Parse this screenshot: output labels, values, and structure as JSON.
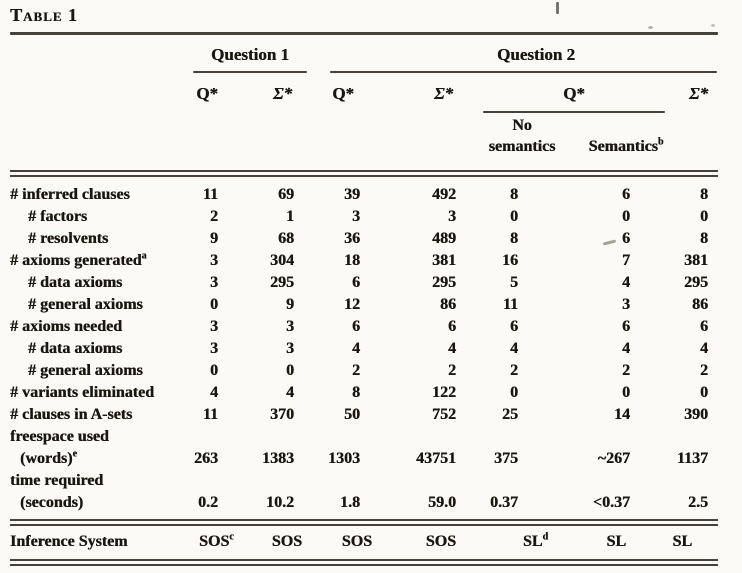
{
  "page": {
    "title": "Table 1"
  },
  "table": {
    "groups": {
      "question1": "Question 1",
      "question2": "Question 2"
    },
    "columns": {
      "q1_q": "Q*",
      "q1_sigma": "Σ*",
      "q2_q": "Q*",
      "q2_sigma": "Σ*",
      "q2_q_group": "Q*",
      "no_semantics_line1": "No",
      "no_semantics_line2": "semantics",
      "semantics": "Semantics",
      "semantics_sup": "b",
      "q2_sigma2": "Σ*"
    },
    "rows": [
      {
        "label": "# inferred clauses",
        "indent": 0,
        "values": [
          "11",
          "69",
          "39",
          "492",
          "8",
          "6",
          "8"
        ]
      },
      {
        "label": "# factors",
        "indent": 1,
        "values": [
          "2",
          "1",
          "3",
          "3",
          "0",
          "0",
          "0"
        ]
      },
      {
        "label": "# resolvents",
        "indent": 1,
        "values": [
          "9",
          "68",
          "36",
          "489",
          "8",
          "6",
          "8"
        ]
      },
      {
        "label": "# axioms generated",
        "sup": "a",
        "indent": 0,
        "values": [
          "3",
          "304",
          "18",
          "381",
          "16",
          "7",
          "381"
        ]
      },
      {
        "label": "# data axioms",
        "indent": 1,
        "values": [
          "3",
          "295",
          "6",
          "295",
          "5",
          "4",
          "295"
        ]
      },
      {
        "label": "# general axioms",
        "indent": 1,
        "values": [
          "0",
          "9",
          "12",
          "86",
          "11",
          "3",
          "86"
        ]
      },
      {
        "label": "# axioms needed",
        "indent": 0,
        "values": [
          "3",
          "3",
          "6",
          "6",
          "6",
          "6",
          "6"
        ]
      },
      {
        "label": "# data axioms",
        "indent": 1,
        "values": [
          "3",
          "3",
          "4",
          "4",
          "4",
          "4",
          "4"
        ]
      },
      {
        "label": "# general axioms",
        "indent": 1,
        "values": [
          "0",
          "0",
          "2",
          "2",
          "2",
          "2",
          "2"
        ]
      },
      {
        "label": "# variants eliminated",
        "indent": 0,
        "values": [
          "4",
          "4",
          "8",
          "122",
          "0",
          "0",
          "0"
        ]
      },
      {
        "label": "# clauses in A-sets",
        "indent": 0,
        "values": [
          "11",
          "370",
          "50",
          "752",
          "25",
          "14",
          "390"
        ]
      },
      {
        "label": "freespace used",
        "indent": 0,
        "values": [
          "",
          "",
          "",
          "",
          "",
          "",
          ""
        ]
      },
      {
        "label": "(words)",
        "sup": "e",
        "indent": 2,
        "values": [
          "263",
          "1383",
          "1303",
          "43751",
          "375",
          "~267",
          "1137"
        ]
      },
      {
        "label": "time required",
        "indent": 0,
        "values": [
          "",
          "",
          "",
          "",
          "",
          "",
          ""
        ]
      },
      {
        "label": "(seconds)",
        "indent": 2,
        "values": [
          "0.2",
          "10.2",
          "1.8",
          "59.0",
          "0.37",
          "<0.37",
          "2.5"
        ]
      }
    ],
    "footer": {
      "label": "Inference System",
      "values": [
        {
          "text": "SOS",
          "sup": "c"
        },
        {
          "text": "SOS"
        },
        {
          "text": "SOS"
        },
        {
          "text": "SOS"
        },
        {
          "text": "SL",
          "sup": "d"
        },
        {
          "text": "SL"
        },
        {
          "text": "SL"
        }
      ]
    }
  }
}
